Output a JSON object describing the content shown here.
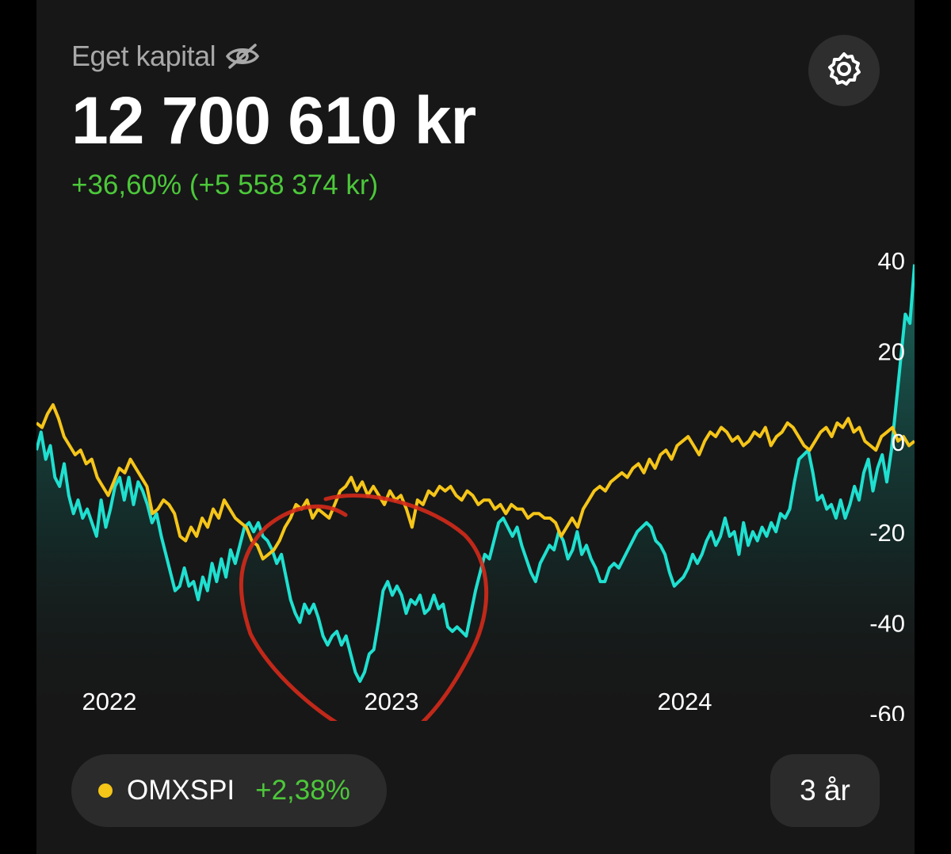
{
  "header": {
    "label": "Eget kapital",
    "value": "12 700 610 kr",
    "change": "+36,60% (+5 558 374 kr)"
  },
  "icons": {
    "visibility": "eye-off-icon",
    "settings": "gear-icon"
  },
  "benchmark": {
    "name": "OMXSPI",
    "change": "+2,38%"
  },
  "period": {
    "label": "3 år"
  },
  "colors": {
    "portfolio": "#1fe0d0",
    "benchmark": "#f5c518",
    "positive": "#4cc83a",
    "annotation": "#d42a1a"
  },
  "chart_data": {
    "type": "line",
    "x_labels": [
      "2022",
      "2023",
      "2024"
    ],
    "y_ticks": [
      40,
      20,
      0,
      -20,
      -40,
      -60
    ],
    "ylim": [
      -60,
      40
    ],
    "series": [
      {
        "name": "",
        "color": "#1fe0d0",
        "values": [
          -2,
          2,
          -4,
          -1,
          -8,
          -10,
          -5,
          -12,
          -16,
          -13,
          -17,
          -15,
          -18,
          -21,
          -13,
          -19,
          -15,
          -10,
          -8,
          -13,
          -8,
          -14,
          -9,
          -11,
          -14,
          -18,
          -16,
          -21,
          -25,
          -29,
          -33,
          -32,
          -28,
          -32,
          -31,
          -35,
          -30,
          -33,
          -27,
          -31,
          -26,
          -30,
          -24,
          -27,
          -23,
          -19,
          -18,
          -20,
          -18,
          -21,
          -22,
          -24,
          -27,
          -25,
          -30,
          -35,
          -38,
          -40,
          -36,
          -38,
          -36,
          -39,
          -43,
          -45,
          -43,
          -42,
          -45,
          -43,
          -47,
          -51,
          -53,
          -51,
          -47,
          -46,
          -40,
          -33,
          -31,
          -34,
          -32,
          -34,
          -38,
          -35,
          -36,
          -34,
          -38,
          -37,
          -34,
          -37,
          -36,
          -41,
          -42,
          -41,
          -42,
          -43,
          -38,
          -33,
          -29,
          -25,
          -26,
          -22,
          -18,
          -17,
          -19,
          -21,
          -19,
          -23,
          -26,
          -29,
          -31,
          -27,
          -25,
          -23,
          -24,
          -20,
          -22,
          -26,
          -24,
          -20,
          -25,
          -23,
          -26,
          -28,
          -31,
          -31,
          -28,
          -27,
          -28,
          -26,
          -24,
          -22,
          -20,
          -19,
          -18,
          -19,
          -22,
          -23,
          -25,
          -29,
          -32,
          -31,
          -30,
          -28,
          -25,
          -27,
          -25,
          -22,
          -20,
          -23,
          -21,
          -17,
          -21,
          -20,
          -25,
          -18,
          -23,
          -20,
          -22,
          -19,
          -21,
          -18,
          -20,
          -16,
          -17,
          -15,
          -9,
          -4,
          -3,
          -2,
          -7,
          -13,
          -12,
          -15,
          -14,
          -17,
          -13,
          -17,
          -14,
          -10,
          -13,
          -7,
          -4,
          -11,
          -6,
          -3,
          -9,
          -2,
          8,
          18,
          28,
          26,
          39
        ]
      },
      {
        "name": "OMXSPI",
        "color": "#f5c518",
        "values": [
          4,
          3,
          6,
          8,
          5,
          1,
          -1,
          -3,
          -2,
          -5,
          -4,
          -8,
          -10,
          -12,
          -9,
          -6,
          -7,
          -4,
          -6,
          -8,
          -10,
          -16,
          -15,
          -13,
          -14,
          -16,
          -21,
          -22,
          -19,
          -21,
          -17,
          -19,
          -15,
          -17,
          -13,
          -15,
          -17,
          -18,
          -19,
          -22,
          -23,
          -26,
          -25,
          -24,
          -22,
          -19,
          -17,
          -14,
          -15,
          -13,
          -17,
          -15,
          -16,
          -17,
          -14,
          -11,
          -10,
          -8,
          -11,
          -9,
          -12,
          -10,
          -12,
          -14,
          -11,
          -13,
          -12,
          -15,
          -19,
          -13,
          -14,
          -11,
          -12,
          -10,
          -11,
          -10,
          -12,
          -13,
          -11,
          -12,
          -14,
          -13,
          -13,
          -15,
          -14,
          -16,
          -14,
          -15,
          -15,
          -17,
          -16,
          -16,
          -17,
          -17,
          -18,
          -21,
          -19,
          -17,
          -19,
          -15,
          -13,
          -11,
          -10,
          -11,
          -9,
          -8,
          -7,
          -8,
          -6,
          -5,
          -7,
          -4,
          -6,
          -3,
          -2,
          -4,
          -1,
          0,
          1,
          -1,
          -3,
          0,
          2,
          1,
          3,
          2,
          0,
          1,
          -1,
          0,
          2,
          1,
          3,
          -1,
          1,
          2,
          4,
          3,
          1,
          -1,
          -2,
          0,
          2,
          3,
          1,
          4,
          3,
          5,
          2,
          3,
          0,
          -1,
          -2,
          1,
          2,
          3,
          0,
          1,
          -1,
          0
        ]
      }
    ],
    "grid": false,
    "legend": "bottom-left"
  }
}
